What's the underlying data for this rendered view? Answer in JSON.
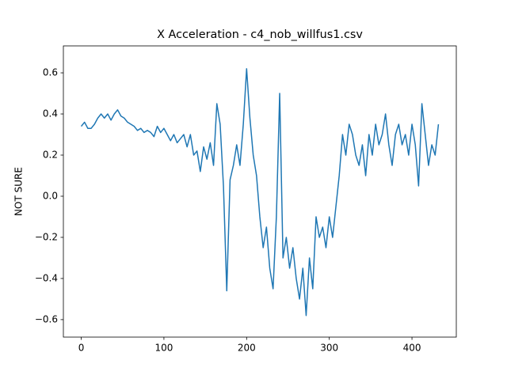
{
  "chart_data": {
    "type": "line",
    "title": "X Acceleration - c4_nob_willfus1.csv",
    "y_label": "NOT SURE",
    "x": [
      0,
      4,
      8,
      12,
      16,
      20,
      24,
      28,
      32,
      36,
      40,
      44,
      48,
      52,
      56,
      60,
      64,
      68,
      72,
      76,
      80,
      84,
      88,
      92,
      96,
      100,
      104,
      108,
      112,
      116,
      120,
      124,
      128,
      132,
      136,
      140,
      144,
      148,
      152,
      156,
      160,
      164,
      168,
      172,
      176,
      180,
      184,
      188,
      192,
      196,
      200,
      204,
      208,
      212,
      216,
      220,
      224,
      228,
      232,
      236,
      240,
      244,
      248,
      252,
      256,
      260,
      264,
      268,
      272,
      276,
      280,
      284,
      288,
      292,
      296,
      300,
      304,
      308,
      312,
      316,
      320,
      324,
      328,
      332,
      336,
      340,
      344,
      348,
      352,
      356,
      360,
      364,
      368,
      372,
      376,
      380,
      384,
      388,
      392,
      396,
      400,
      404,
      408,
      412,
      416,
      420,
      424,
      428,
      432
    ],
    "series": [
      {
        "color": "#1f77b4",
        "values": [
          0.34,
          0.36,
          0.33,
          0.33,
          0.35,
          0.38,
          0.4,
          0.38,
          0.4,
          0.37,
          0.4,
          0.42,
          0.39,
          0.38,
          0.36,
          0.35,
          0.34,
          0.32,
          0.33,
          0.31,
          0.32,
          0.31,
          0.29,
          0.34,
          0.31,
          0.33,
          0.3,
          0.27,
          0.3,
          0.26,
          0.28,
          0.3,
          0.24,
          0.3,
          0.2,
          0.22,
          0.12,
          0.24,
          0.18,
          0.26,
          0.15,
          0.45,
          0.35,
          0.05,
          -0.46,
          0.08,
          0.15,
          0.25,
          0.15,
          0.35,
          0.62,
          0.38,
          0.2,
          0.1,
          -0.1,
          -0.25,
          -0.15,
          -0.35,
          -0.45,
          -0.1,
          0.5,
          -0.3,
          -0.2,
          -0.35,
          -0.25,
          -0.4,
          -0.5,
          -0.35,
          -0.58,
          -0.3,
          -0.45,
          -0.1,
          -0.2,
          -0.15,
          -0.25,
          -0.1,
          -0.2,
          -0.05,
          0.1,
          0.3,
          0.2,
          0.35,
          0.3,
          0.2,
          0.15,
          0.25,
          0.1,
          0.3,
          0.2,
          0.35,
          0.25,
          0.3,
          0.4,
          0.25,
          0.15,
          0.3,
          0.35,
          0.25,
          0.3,
          0.2,
          0.35,
          0.25,
          0.05,
          0.45,
          0.3,
          0.15,
          0.25,
          0.2,
          0.35
        ]
      }
    ],
    "xlim": [
      -21.6,
      453.6
    ],
    "ylim": [
      -0.685,
      0.731
    ],
    "xticks": [
      0,
      100,
      200,
      300,
      400
    ],
    "yticks": [
      {
        "value": -0.6,
        "label": "−0.6"
      },
      {
        "value": -0.4,
        "label": "−0.4"
      },
      {
        "value": -0.2,
        "label": "−0.2"
      },
      {
        "value": 0,
        "label": "0.0"
      },
      0.2,
      0.4,
      0.6
    ]
  }
}
